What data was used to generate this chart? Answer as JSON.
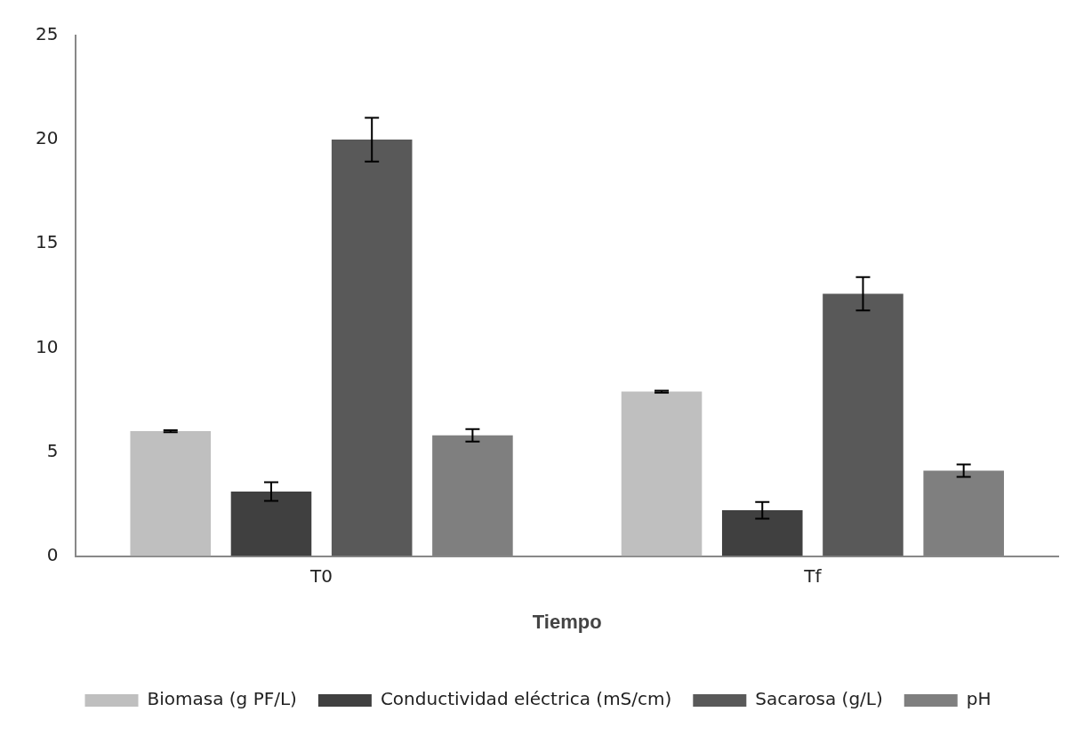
{
  "chart_data": {
    "type": "bar",
    "xlabel": "Tiempo",
    "categories": [
      "T0",
      "Tf"
    ],
    "series": [
      {
        "name": "Biomasa (g PF/L)",
        "color": "#bfbfbf",
        "values": [
          6.0,
          7.9
        ],
        "errors": [
          0.05,
          0.05
        ]
      },
      {
        "name": "Conductividad eléctrica (mS/cm)",
        "color": "#404040",
        "values": [
          3.1,
          2.2
        ],
        "errors": [
          0.45,
          0.4
        ]
      },
      {
        "name": "Sacarosa (g/L)",
        "color": "#595959",
        "values": [
          20.0,
          12.6
        ],
        "errors": [
          1.05,
          0.8
        ]
      },
      {
        "name": "pH",
        "color": "#7f7f7f",
        "values": [
          5.8,
          4.1
        ],
        "errors": [
          0.3,
          0.3
        ]
      }
    ],
    "ylim": [
      0,
      25
    ],
    "yticks": [
      0,
      5,
      10,
      15,
      20,
      25
    ],
    "grid": false,
    "legend": "bottom"
  }
}
